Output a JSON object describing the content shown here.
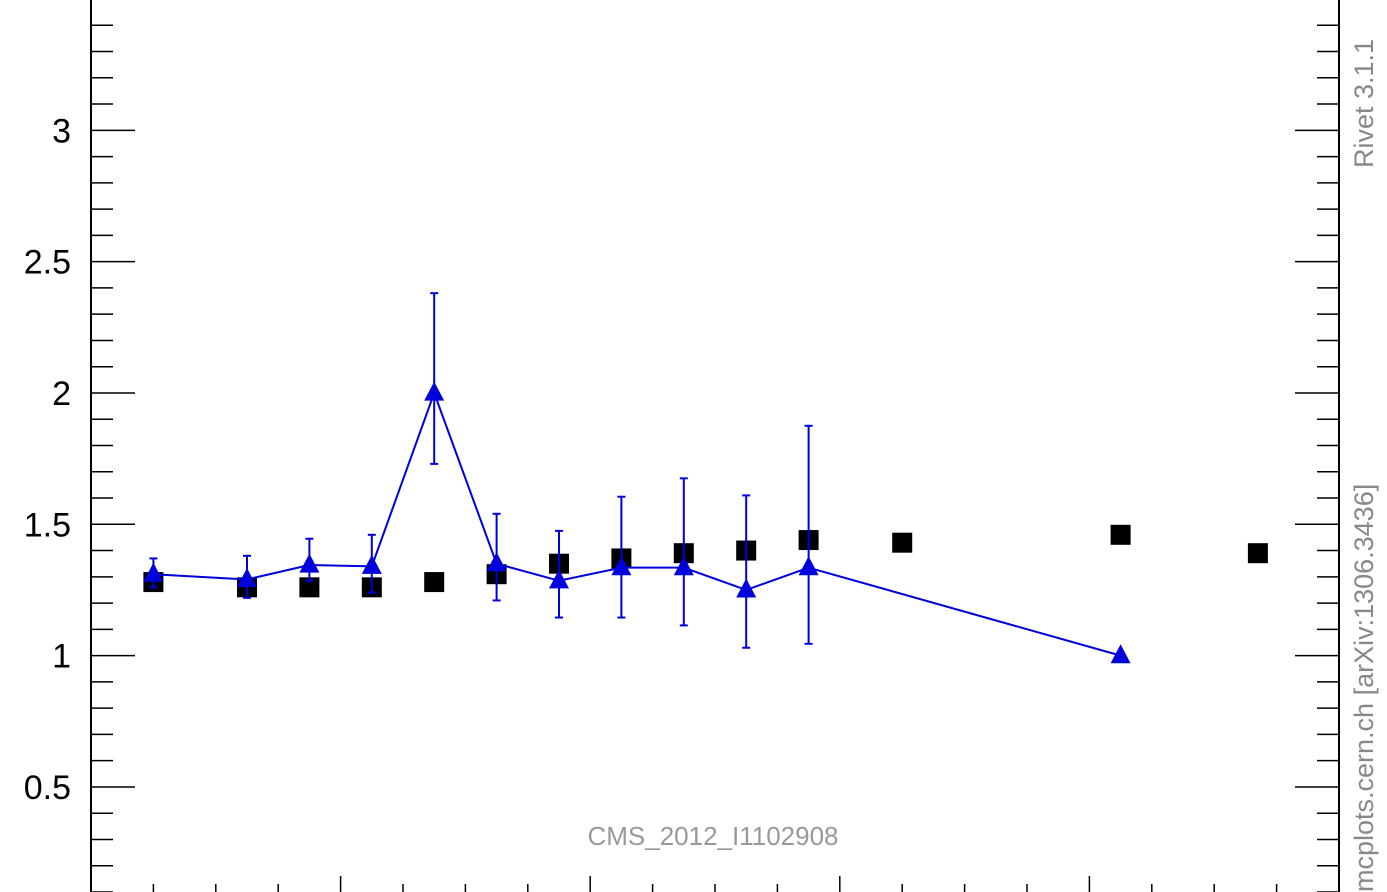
{
  "chart_data": {
    "type": "scatter",
    "ylim": [
      0.1,
      3.5
    ],
    "xlim": [
      0,
      20
    ],
    "y_ticks": [
      0.5,
      1,
      1.5,
      2,
      2.5,
      3
    ],
    "y_tick_labels": [
      "0.5",
      "1",
      "1.5",
      "2",
      "2.5",
      "3"
    ],
    "analysis_label": "CMS_2012_I1102908",
    "side_labels": [
      "Rivet 3.1.1",
      "mcplots.cern.ch [arXiv:1306.3436]"
    ],
    "series": [
      {
        "marker": "square",
        "color": "#000000",
        "x": [
          1,
          2.5,
          3.5,
          4.5,
          5.5,
          6.5,
          7.5,
          8.5,
          9.5,
          10.5,
          11.5,
          13,
          16.5,
          18.7
        ],
        "y": [
          1.28,
          1.26,
          1.26,
          1.26,
          1.28,
          1.31,
          1.35,
          1.37,
          1.39,
          1.4,
          1.44,
          1.43,
          1.46,
          1.39
        ]
      },
      {
        "marker": "triangle",
        "color": "#0000dd",
        "line": true,
        "x": [
          1,
          2.5,
          3.5,
          4.5,
          5.5,
          6.5,
          7.5,
          8.5,
          9.5,
          10.5,
          11.5,
          16.5
        ],
        "y": [
          1.31,
          1.29,
          1.345,
          1.34,
          2.0,
          1.35,
          1.285,
          1.335,
          1.335,
          1.25,
          1.335,
          1.0
        ],
        "err_low": [
          0.05,
          0.07,
          0.06,
          0.1,
          0.27,
          0.14,
          0.14,
          0.19,
          0.22,
          0.22,
          0.29,
          0
        ],
        "err_high": [
          0.06,
          0.09,
          0.1,
          0.12,
          0.38,
          0.19,
          0.19,
          0.27,
          0.34,
          0.36,
          0.54,
          0
        ]
      }
    ],
    "grid": false,
    "legend": "none"
  }
}
